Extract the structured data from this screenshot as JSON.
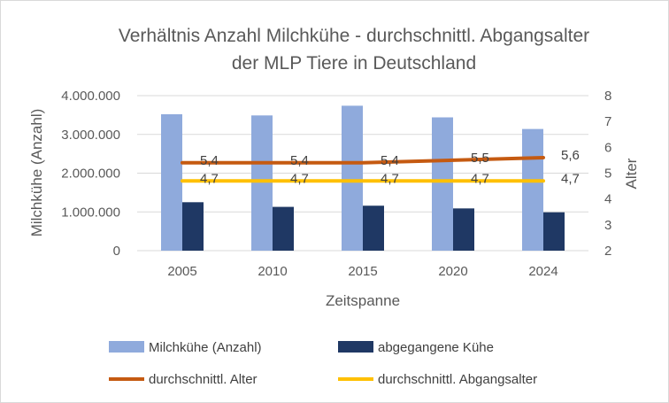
{
  "chart_data": {
    "type": "bar",
    "title_lines": [
      "Verhältnis Anzahl Milchkühe - durchschnittl. Abgangsalter",
      "der MLP Tiere in Deutschland"
    ],
    "xlabel": "Zeitspanne",
    "ylabel": "Milchkühe (Anzahl)",
    "y2label": "Alter",
    "categories": [
      "2005",
      "2010",
      "2015",
      "2020",
      "2024"
    ],
    "ylim": [
      0,
      4000000
    ],
    "yticks": [
      "0",
      "1.000.000",
      "2.000.000",
      "3.000.000",
      "4.000.000"
    ],
    "y2lim": [
      2,
      8
    ],
    "y2ticks": [
      "2",
      "3",
      "4",
      "5",
      "6",
      "7",
      "8"
    ],
    "grid": true,
    "legend_position": "bottom",
    "series": [
      {
        "name": "Milchkühe (Anzahl)",
        "kind": "bar",
        "axis": "left",
        "color": "#8faadc",
        "values": [
          3520000,
          3490000,
          3740000,
          3440000,
          3140000
        ]
      },
      {
        "name": "abgegangene Kühe",
        "kind": "bar",
        "axis": "left",
        "color": "#1f3864",
        "values": [
          1250000,
          1130000,
          1160000,
          1090000,
          990000
        ]
      },
      {
        "name": "durchschnittl.  Alter",
        "kind": "line",
        "axis": "right",
        "color": "#c55a11",
        "values": [
          5.4,
          5.4,
          5.4,
          5.5,
          5.6
        ],
        "labels": [
          "5,4",
          "5,4",
          "5,4",
          "5,5",
          "5,6"
        ]
      },
      {
        "name": "durchschnittl. Abgangsalter",
        "kind": "line",
        "axis": "right",
        "color": "#ffc000",
        "values": [
          4.7,
          4.7,
          4.7,
          4.7,
          4.7
        ],
        "labels": [
          "4,7",
          "4,7",
          "4,7",
          "4,7",
          "4,7"
        ]
      }
    ]
  }
}
